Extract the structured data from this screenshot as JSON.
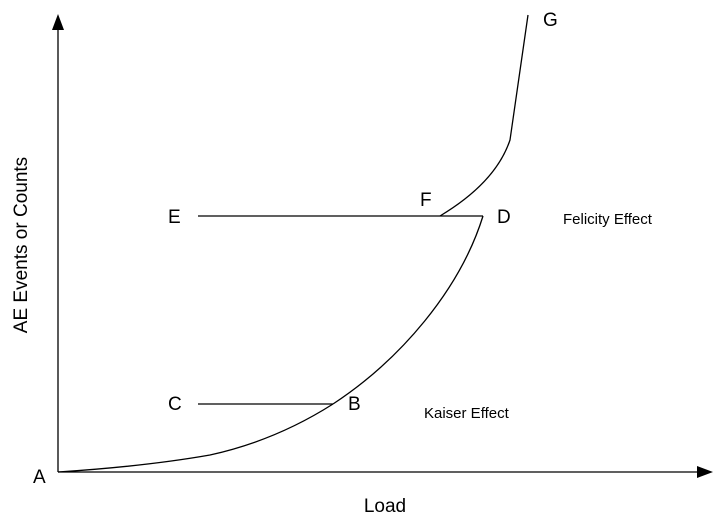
{
  "axes": {
    "x_label": "Load",
    "y_label": "AE Events or Counts"
  },
  "points": {
    "A": "A",
    "B": "B",
    "C": "C",
    "D": "D",
    "E": "E",
    "F": "F",
    "G": "G"
  },
  "annotations": {
    "felicity": "Felicity Effect",
    "kaiser": "Kaiser Effect"
  }
}
